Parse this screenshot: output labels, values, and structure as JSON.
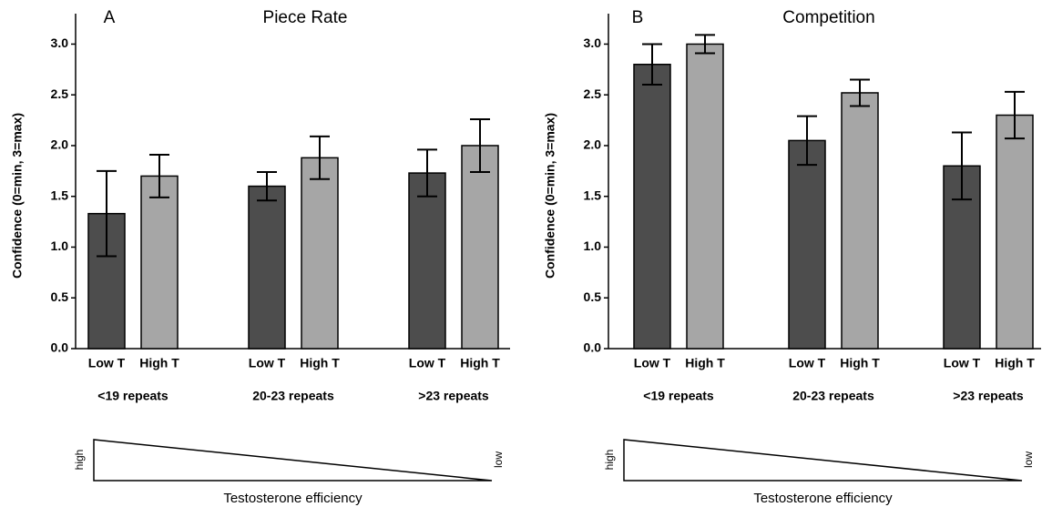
{
  "chart_data": [
    {
      "type": "bar",
      "panel": "A",
      "title": "Piece Rate",
      "ylabel": "Confidence (0=min, 3=max)",
      "categories": [
        "<19 repeats",
        "20-23 repeats",
        ">23 repeats"
      ],
      "series": [
        {
          "name": "Low T",
          "color": "#4d4d4d",
          "values": [
            1.33,
            1.6,
            1.73
          ],
          "errors": [
            0.42,
            0.14,
            0.23
          ]
        },
        {
          "name": "High T",
          "color": "#a6a6a6",
          "values": [
            1.7,
            1.88,
            2.0
          ],
          "errors": [
            0.21,
            0.21,
            0.26
          ]
        }
      ],
      "ylim": [
        0,
        3.3
      ],
      "yticks": [
        {
          "value": 0,
          "label": "0.0"
        },
        0.5,
        {
          "value": 1,
          "label": "1.0"
        },
        1.5,
        {
          "value": 2,
          "label": "2.0"
        },
        2.5,
        {
          "value": 3,
          "label": "3.0"
        }
      ],
      "gradient": {
        "label": "Testosterone efficiency",
        "start": "high",
        "end": "low"
      }
    },
    {
      "type": "bar",
      "panel": "B",
      "title": "Competition",
      "ylabel": "Confidence (0=min, 3=max)",
      "categories": [
        "<19 repeats",
        "20-23 repeats",
        ">23 repeats"
      ],
      "series": [
        {
          "name": "Low T",
          "color": "#4d4d4d",
          "values": [
            2.8,
            2.05,
            1.8
          ],
          "errors": [
            0.2,
            0.24,
            0.33
          ]
        },
        {
          "name": "High T",
          "color": "#a6a6a6",
          "values": [
            3.0,
            2.52,
            2.3
          ],
          "errors": [
            0.09,
            0.13,
            0.23
          ]
        }
      ],
      "ylim": [
        0,
        3.3
      ],
      "yticks": [
        {
          "value": 0,
          "label": "0.0"
        },
        0.5,
        {
          "value": 1,
          "label": "1.0"
        },
        1.5,
        {
          "value": 2,
          "label": "2.0"
        },
        2.5,
        {
          "value": 3,
          "label": "3.0"
        }
      ],
      "gradient": {
        "label": "Testosterone efficiency",
        "start": "high",
        "end": "low"
      }
    }
  ]
}
